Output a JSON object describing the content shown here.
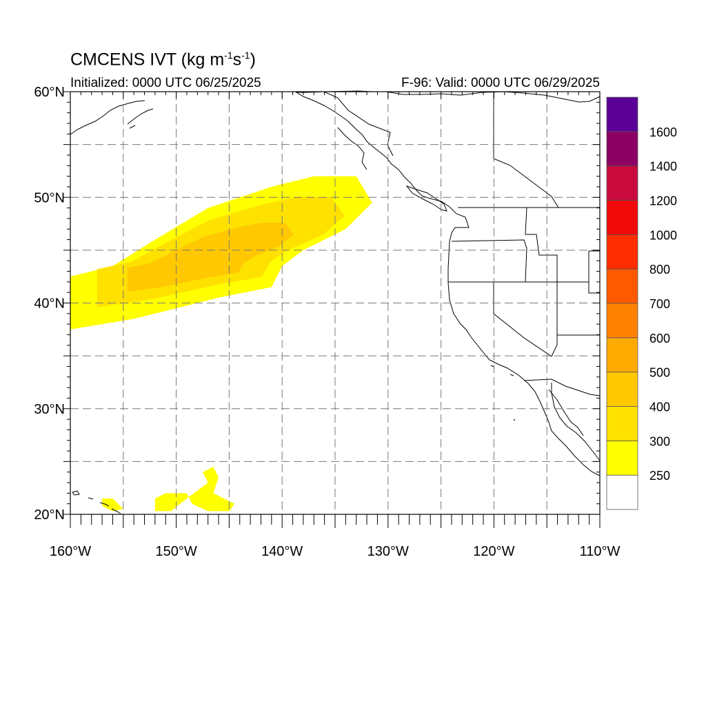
{
  "title": {
    "main": "CMCENS IVT (kg m",
    "exp1": "-1",
    "mid": "s",
    "exp2": "-1",
    "tail": ")"
  },
  "subtitle_left": "Initialized: 0000 UTC 06/25/2025",
  "subtitle_right": "F-96: Valid: 0000 UTC 06/29/2025",
  "map": {
    "projection": "cylindrical-equidistant",
    "lon_range": [
      -160,
      -110
    ],
    "lat_range": [
      20,
      60
    ],
    "grid": "dashed",
    "grid_lon_step": 5,
    "grid_lat_step": 5,
    "lon_ticks": [
      {
        "value": -160,
        "label": "160°W"
      },
      {
        "value": -150,
        "label": "150°W"
      },
      {
        "value": -140,
        "label": "140°W"
      },
      {
        "value": -130,
        "label": "130°W"
      },
      {
        "value": -120,
        "label": "120°W"
      },
      {
        "value": -110,
        "label": "110°W"
      }
    ],
    "lat_ticks": [
      {
        "value": 20,
        "label": "20°N"
      },
      {
        "value": 30,
        "label": "30°N"
      },
      {
        "value": 40,
        "label": "40°N"
      },
      {
        "value": 50,
        "label": "50°N"
      },
      {
        "value": 60,
        "label": "60°N"
      }
    ]
  },
  "colorbar": {
    "levels": [
      250,
      300,
      400,
      500,
      600,
      700,
      800,
      1000,
      1200,
      1400,
      1600
    ],
    "labels": [
      "250",
      "300",
      "400",
      "500",
      "600",
      "700",
      "800",
      "1000",
      "1200",
      "1400",
      "1600"
    ],
    "colors": [
      "#ffffff",
      "#ffff00",
      "#ffe100",
      "#ffc800",
      "#ffaa00",
      "#ff8200",
      "#ff5a00",
      "#ff2d00",
      "#f00a0a",
      "#c80a3c",
      "#8c0064",
      "#5a0096"
    ]
  },
  "ivt_plumes": [
    {
      "name": "main-plume",
      "level": "400-600",
      "color": "#ffc800",
      "outline": [
        [
          -160,
          37.5
        ],
        [
          -154,
          38.5
        ],
        [
          -150,
          39.5
        ],
        [
          -146,
          40.5
        ],
        [
          -141,
          41.5
        ],
        [
          -140,
          43.5
        ],
        [
          -138,
          45
        ],
        [
          -134,
          47
        ],
        [
          -131.5,
          49.5
        ],
        [
          -133,
          52
        ],
        [
          -137,
          52
        ],
        [
          -141,
          51
        ],
        [
          -147,
          49
        ],
        [
          -152,
          46
        ],
        [
          -156,
          43.5
        ],
        [
          -160,
          42.5
        ]
      ]
    },
    {
      "name": "secondary-patch-1",
      "level": "250-300",
      "color": "#ffff00",
      "outline": [
        [
          -152,
          21.5
        ],
        [
          -151,
          22
        ],
        [
          -149,
          22
        ],
        [
          -148.5,
          21
        ],
        [
          -147,
          20.3
        ],
        [
          -145,
          20.3
        ],
        [
          -144.5,
          21
        ],
        [
          -146.5,
          22
        ],
        [
          -146,
          23.5
        ],
        [
          -146.5,
          24.5
        ],
        [
          -147.5,
          24
        ],
        [
          -147,
          23
        ],
        [
          -149,
          21.5
        ],
        [
          -150.5,
          20.3
        ],
        [
          -152,
          20.3
        ]
      ]
    },
    {
      "name": "secondary-patch-2",
      "level": "250-300",
      "color": "#ffff00",
      "outline": [
        [
          -157,
          21.5
        ],
        [
          -156,
          21.5
        ],
        [
          -155,
          20.5
        ],
        [
          -156,
          20.3
        ],
        [
          -157,
          20.8
        ]
      ]
    }
  ]
}
